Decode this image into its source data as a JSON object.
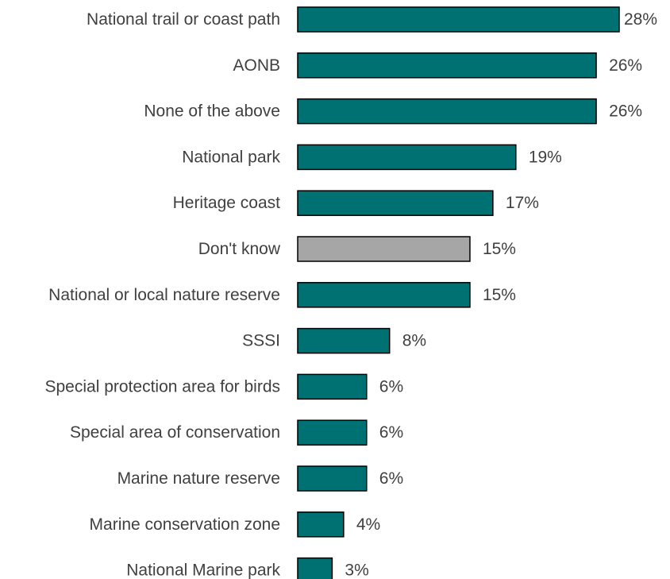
{
  "chart_data": {
    "type": "bar",
    "orientation": "horizontal",
    "categories": [
      "National trail or coast path",
      "AONB",
      "None of the above",
      "National park",
      "Heritage coast",
      "Don't know",
      "National or local nature reserve",
      "SSSI",
      "Special protection area for birds",
      "Special area of conservation",
      "Marine nature reserve",
      "Marine conservation zone",
      "National Marine park"
    ],
    "values": [
      28,
      26,
      26,
      19,
      17,
      15,
      15,
      8,
      6,
      6,
      6,
      4,
      3
    ],
    "value_labels": [
      "28%",
      "26%",
      "26%",
      "19%",
      "17%",
      "15%",
      "15%",
      "8%",
      "6%",
      "6%",
      "6%",
      "4%",
      "3%"
    ],
    "unit": "%",
    "colors": [
      "#007173",
      "#007173",
      "#007173",
      "#007173",
      "#007173",
      "#A6A6A6",
      "#007173",
      "#007173",
      "#007173",
      "#007173",
      "#007173",
      "#007173",
      "#007173"
    ],
    "xlim": [
      0,
      28
    ],
    "grid": false,
    "legend": "none"
  }
}
